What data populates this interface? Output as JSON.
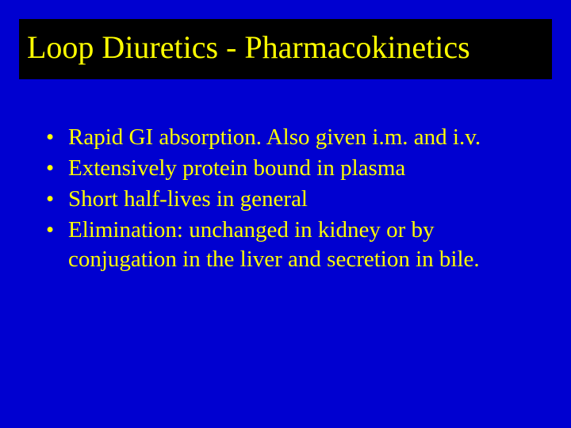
{
  "slide": {
    "title": "Loop Diuretics - Pharmacokinetics",
    "bullets": [
      "Rapid GI absorption.  Also given i.m. and i.v.",
      "Extensively protein bound in plasma",
      "Short half-lives in general",
      "Elimination: unchanged in kidney or by conjugation in the liver and secretion in bile."
    ]
  },
  "style": {
    "background_color": "#0000d0",
    "title_box_bg": "#000000",
    "text_color": "#ffff00",
    "title_fontsize": 40,
    "bullet_fontsize": 29,
    "font_family": "Times New Roman"
  }
}
